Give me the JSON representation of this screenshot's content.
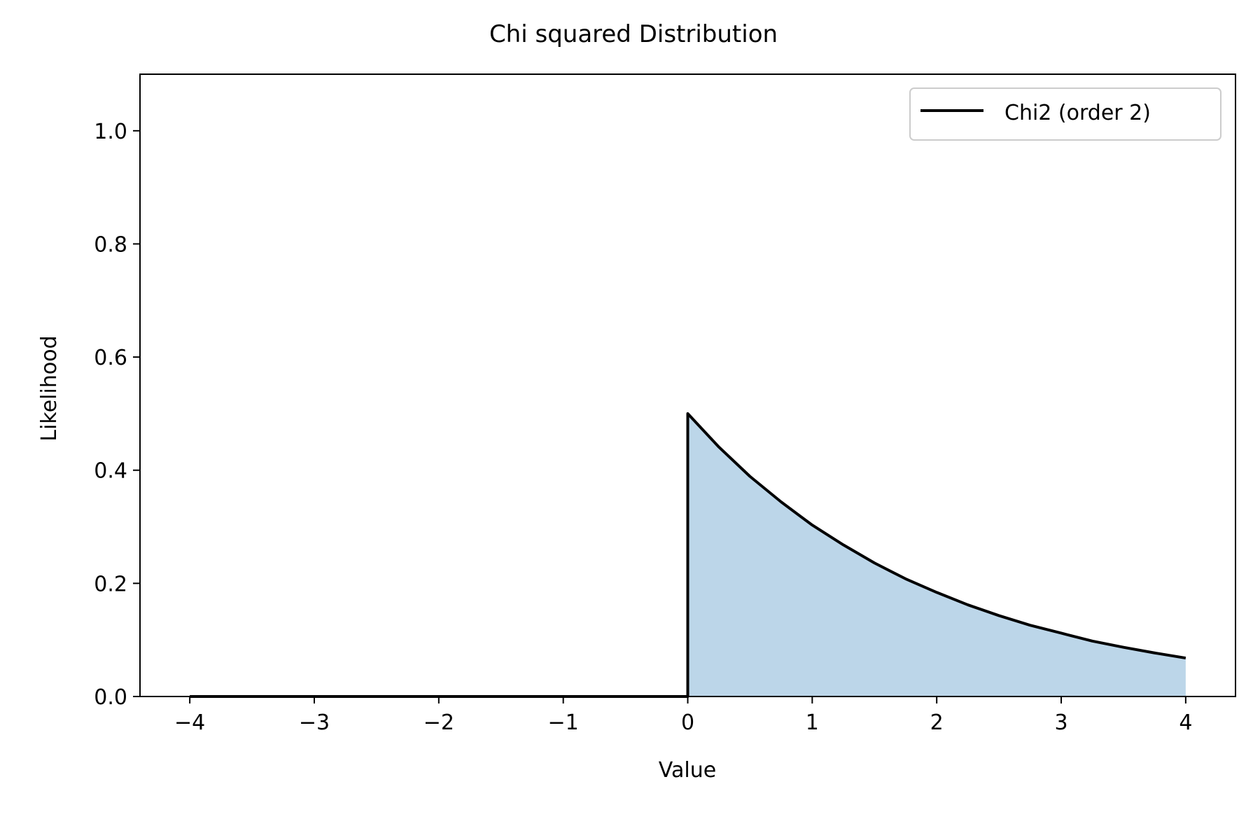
{
  "chart_data": {
    "type": "area",
    "title": "Chi squared Distribution",
    "xlabel": "Value",
    "ylabel": "Likelihood",
    "xlim": [
      -4.4,
      4.4
    ],
    "ylim": [
      0.0,
      1.1
    ],
    "xticks": [
      -4,
      -3,
      -2,
      -1,
      0,
      1,
      2,
      3,
      4
    ],
    "xtick_labels": [
      "−4",
      "−3",
      "−2",
      "−1",
      "0",
      "1",
      "2",
      "3",
      "4"
    ],
    "yticks": [
      0.0,
      0.2,
      0.4,
      0.6,
      0.8,
      1.0
    ],
    "ytick_labels": [
      "0.0",
      "0.2",
      "0.4",
      "0.6",
      "0.8",
      "1.0"
    ],
    "grid": false,
    "legend_position": "top-right",
    "series": [
      {
        "name": "Chi2 (order 2)",
        "color": "#000000",
        "fill_color": "#bcd6e9",
        "x": [
          -4,
          -3,
          -2,
          -1,
          0,
          0,
          0.25,
          0.5,
          0.75,
          1,
          1.25,
          1.5,
          1.75,
          2,
          2.25,
          2.5,
          2.75,
          3,
          3.25,
          3.5,
          3.75,
          4
        ],
        "y": [
          0,
          0,
          0,
          0,
          0,
          0.5,
          0.441,
          0.389,
          0.344,
          0.303,
          0.268,
          0.236,
          0.208,
          0.184,
          0.162,
          0.143,
          0.126,
          0.112,
          0.098,
          0.087,
          0.077,
          0.068
        ]
      }
    ]
  }
}
